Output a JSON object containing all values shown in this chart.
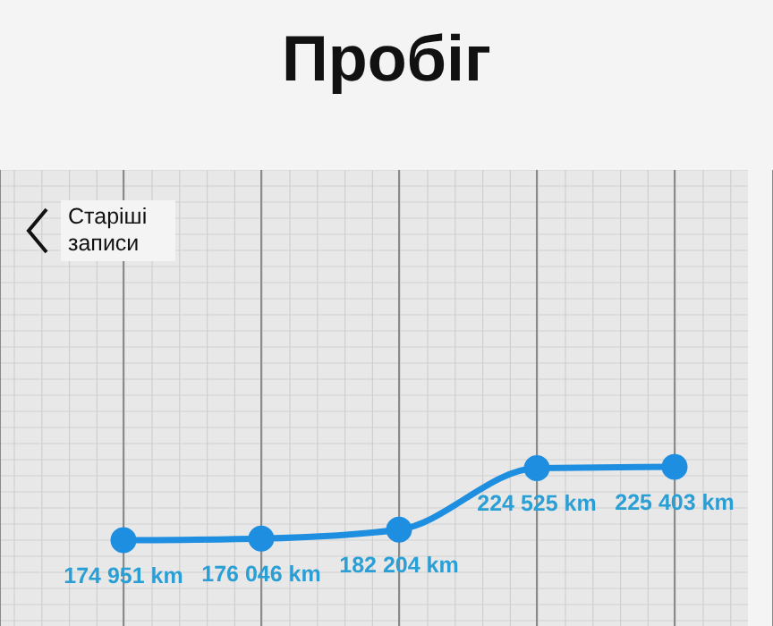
{
  "chart_data": {
    "type": "line",
    "title": "Пробіг",
    "categories": [
      null,
      null,
      null,
      null,
      null
    ],
    "series": [
      {
        "color": "#1e8ee0",
        "values": [
          174951,
          176046,
          182204,
          224525,
          225403
        ],
        "value_labels": [
          "174 951 km",
          "176 046 km",
          "182 204 km",
          "224 525 km",
          "225 403 km"
        ]
      }
    ],
    "marker": "circle",
    "line_style": "solid",
    "grid": "x",
    "annotations": [
      "Старіші записи"
    ]
  }
}
